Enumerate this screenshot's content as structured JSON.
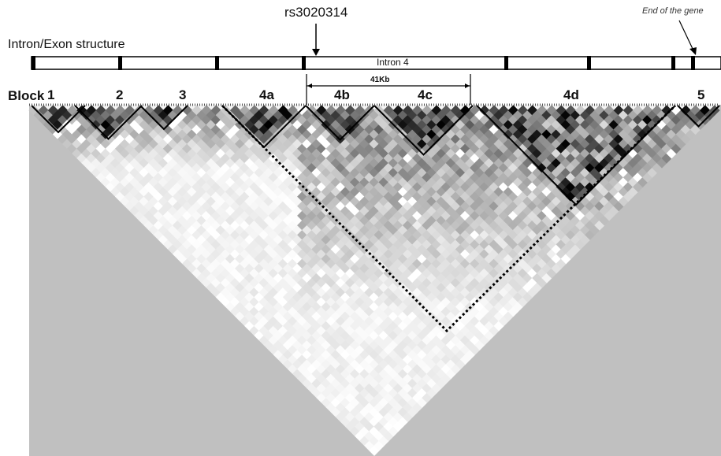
{
  "annotations": {
    "snp": "rs3020314",
    "gene_end": "End of the gene",
    "structure_title": "Intron/Exon structure",
    "intron_label": "Intron 4",
    "span_label": "41Kb",
    "block_title": "Block"
  },
  "blocks": [
    {
      "label": "1"
    },
    {
      "label": "2"
    },
    {
      "label": "3"
    },
    {
      "label": "4a"
    },
    {
      "label": "4b"
    },
    {
      "label": "4c"
    },
    {
      "label": "4d"
    },
    {
      "label": "5"
    }
  ],
  "colors": {
    "background_gray": "#c0c0c0",
    "strong_ld": "#000000",
    "weak_ld": "#ffffff",
    "outline": "#000000"
  }
}
